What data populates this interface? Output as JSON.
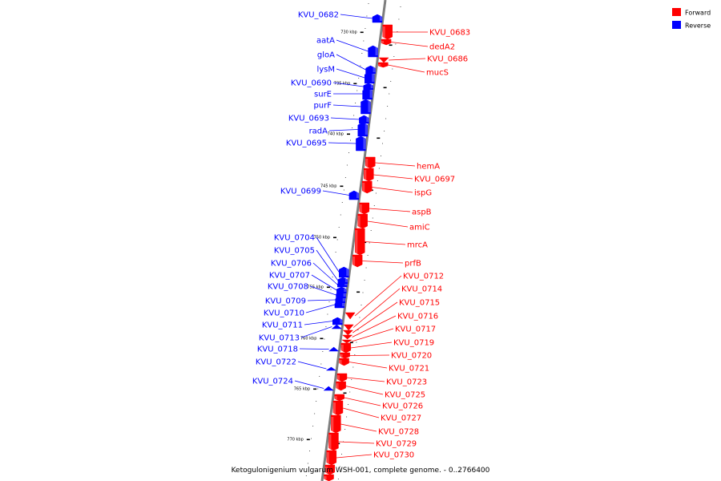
{
  "title": "Ketogulonigenium vulgarum WSH-001, complete genome. - 0..2766400",
  "legend": {
    "placement": "top-right",
    "entries": [
      {
        "label": "Forward",
        "color": "#ff0000"
      },
      {
        "label": "Reverse",
        "color": "#0000ff"
      }
    ]
  },
  "colors": {
    "forward": "#ff0000",
    "reverse": "#0000ff",
    "backbone": "#7f7f7f",
    "tick": "#000000"
  },
  "scale_ticks": [
    "730 kbp",
    "735 kbp",
    "740 kbp",
    "745 kbp",
    "750 kbp",
    "755 kbp",
    "760 kbp",
    "765 kbp",
    "770 kbp"
  ],
  "reverse_genes": [
    "KVU_0682",
    "aatA",
    "gloA",
    "lysM",
    "KVU_0690",
    "surE",
    "purF",
    "KVU_0693",
    "radA",
    "KVU_0695",
    "KVU_0699",
    "KVU_0704",
    "KVU_0705",
    "KVU_0706",
    "KVU_0707",
    "KVU_0708",
    "KVU_0709",
    "KVU_0710",
    "KVU_0711",
    "KVU_0713",
    "KVU_0718",
    "KVU_0722",
    "KVU_0724"
  ],
  "forward_genes": [
    "KVU_0683",
    "dedA2",
    "KVU_0686",
    "mucS",
    "hemA",
    "KVU_0697",
    "ispG",
    "aspB",
    "amiC",
    "mrcA",
    "prfB",
    "KVU_0712",
    "KVU_0714",
    "KVU_0715",
    "KVU_0716",
    "KVU_0717",
    "KVU_0719",
    "KVU_0720",
    "KVU_0721",
    "KVU_0723",
    "KVU_0725",
    "KVU_0726",
    "KVU_0727",
    "KVU_0728",
    "KVU_0729",
    "KVU_0730"
  ]
}
